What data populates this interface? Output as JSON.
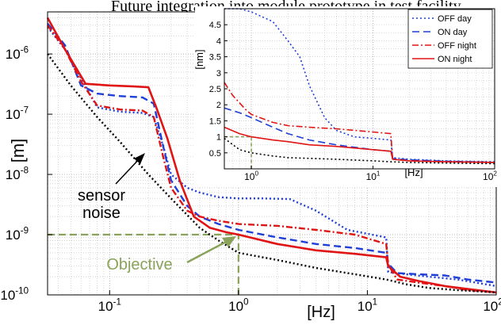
{
  "header": {
    "caption": "Future integration into module prototype in test facility."
  },
  "chart_data": [
    {
      "type": "line",
      "scale": {
        "x": "log",
        "y": "log"
      },
      "xlabel": "[Hz]",
      "ylabel": "[m]",
      "xlim": [
        0.033,
        100
      ],
      "ylim": [
        1e-10,
        5e-06
      ],
      "x_ticks": [
        0.1,
        1,
        10,
        100
      ],
      "x_tick_labels": [
        "10^-1",
        "10^0",
        "10^1",
        "10^2"
      ],
      "y_ticks": [
        1e-10,
        1e-09,
        1e-08,
        1e-07,
        1e-06
      ],
      "y_tick_labels": [
        "10^-10",
        "10^-9",
        "10^-8",
        "10^-7",
        "10^-6"
      ],
      "grid": true,
      "series": [
        {
          "name": "OFF day",
          "color": "#1f3fd6",
          "dash": "2,3",
          "x": [
            0.033,
            0.045,
            0.06,
            0.08,
            0.12,
            0.18,
            0.22,
            0.26,
            0.3,
            0.4,
            0.5,
            0.7,
            1.0,
            1.5,
            2.5,
            4,
            7,
            14,
            14.5,
            20,
            30,
            50,
            100
          ],
          "y": [
            2.8e-06,
            1.2e-06,
            4e-07,
            1.3e-07,
            1.1e-07,
            1.05e-07,
            9e-08,
            3e-08,
            1e-08,
            6e-09,
            5e-09,
            4.2e-09,
            4e-09,
            4e-09,
            3.9e-09,
            2.5e-09,
            1.2e-09,
            9e-10,
            2.4e-10,
            2.2e-10,
            2e-10,
            1.8e-10,
            1.4e-10
          ]
        },
        {
          "name": "ON  day",
          "color": "#1f3fd6",
          "dash": "9,5",
          "x": [
            0.033,
            0.045,
            0.06,
            0.08,
            0.12,
            0.18,
            0.22,
            0.26,
            0.3,
            0.4,
            0.5,
            0.7,
            1.0,
            2,
            4,
            8,
            14,
            14.5,
            17,
            25,
            40,
            60,
            100
          ],
          "y": [
            3.2e-06,
            1.4e-06,
            3e-07,
            2.2e-07,
            2e-07,
            1.9e-07,
            1.5e-07,
            3e-08,
            8e-09,
            3e-09,
            2e-09,
            1.5e-09,
            1.2e-09,
            9e-10,
            7e-10,
            6e-10,
            5e-10,
            3.3e-10,
            2.3e-10,
            2.2e-10,
            2.1e-10,
            1.8e-10,
            1.6e-10
          ]
        },
        {
          "name": "OFF night",
          "color": "#e01414",
          "dash": "8,3,2,3",
          "x": [
            0.033,
            0.045,
            0.06,
            0.08,
            0.12,
            0.18,
            0.22,
            0.26,
            0.3,
            0.4,
            0.5,
            0.7,
            1.0,
            2,
            4,
            8,
            14,
            14.5,
            17,
            25,
            40,
            60,
            100
          ],
          "y": [
            3e-06,
            1.2e-06,
            3.5e-07,
            1.4e-07,
            1.2e-07,
            1.15e-07,
            9e-08,
            2e-08,
            6e-09,
            2.5e-09,
            2e-09,
            1.7e-09,
            1.5e-09,
            1.4e-09,
            1.2e-09,
            1e-09,
            7e-10,
            3.2e-10,
            1.8e-10,
            1.6e-10,
            1.4e-10,
            1.2e-10,
            1.1e-10
          ]
        },
        {
          "name": "ON  night",
          "color": "#e01414",
          "dash": "",
          "x": [
            0.033,
            0.045,
            0.065,
            0.1,
            0.15,
            0.2,
            0.23,
            0.28,
            0.35,
            0.45,
            0.6,
            0.8,
            1.0,
            2,
            4,
            8,
            14,
            14.5,
            18,
            25,
            40,
            60,
            100
          ],
          "y": [
            4e-06,
            1.2e-06,
            3.2e-07,
            3e-07,
            2.9e-07,
            2.8e-07,
            1.3e-07,
            4e-08,
            8e-09,
            2e-09,
            1.3e-09,
            1.1e-09,
            1e-09,
            7e-10,
            5.5e-10,
            4.8e-10,
            4.2e-10,
            3e-10,
            2e-10,
            1.7e-10,
            1.4e-10,
            1.25e-10,
            1.1e-10
          ]
        },
        {
          "name": "sensor noise",
          "color": "#000000",
          "dash": "2,3",
          "x": [
            0.033,
            0.05,
            0.08,
            0.12,
            0.2,
            0.3,
            0.5,
            0.7,
            1.0,
            2,
            4,
            8,
            14,
            20,
            30,
            50,
            100
          ],
          "y": [
            1e-06,
            3e-07,
            9e-08,
            3.5e-08,
            1e-08,
            4e-09,
            1.3e-09,
            8e-10,
            5e-10,
            3.8e-10,
            2.8e-10,
            2.2e-10,
            1.8e-10,
            1.5e-10,
            1.3e-10,
            1.2e-10,
            1.1e-10
          ]
        }
      ],
      "objective": {
        "label": "Objective",
        "x": 1.0,
        "y": 1e-09,
        "color": "#8aa35a"
      },
      "annotations": {
        "sensor_noise_label": [
          "sensor",
          "noise"
        ]
      }
    },
    {
      "type": "line",
      "scale": {
        "x": "log",
        "y": "linear"
      },
      "xlabel": "[Hz]",
      "ylabel": "[nm]",
      "xlim": [
        0.6,
        100
      ],
      "ylim": [
        0,
        5
      ],
      "x_ticks": [
        1,
        10,
        100
      ],
      "x_tick_labels": [
        "10^0",
        "10^1",
        "10^2"
      ],
      "y_ticks": [
        0.5,
        1,
        1.5,
        2,
        2.5,
        3,
        3.5,
        4,
        4.5
      ],
      "y_tick_labels": [
        "0.5",
        "1",
        "1.5",
        "2",
        "2.5",
        "3",
        "3.5",
        "4",
        "4.5"
      ],
      "grid": true,
      "legend": {
        "position": "top-right",
        "entries": [
          "OFF day",
          "ON  day",
          "OFF night",
          "ON  night"
        ]
      },
      "series": [
        {
          "name": "OFF day",
          "color": "#1f3fd6",
          "dash": "2,3",
          "x": [
            0.6,
            0.8,
            1.0,
            1.5,
            2,
            2.5,
            3,
            4,
            5,
            7,
            10,
            14,
            14.5,
            20,
            40,
            100
          ],
          "y": [
            5,
            5,
            4.9,
            4.6,
            4.0,
            3.5,
            2.6,
            1.6,
            1.2,
            1.0,
            0.95,
            0.9,
            0.35,
            0.3,
            0.25,
            0.22
          ]
        },
        {
          "name": "ON  day",
          "color": "#1f3fd6",
          "dash": "9,5",
          "x": [
            0.6,
            0.8,
            1.0,
            1.5,
            2,
            3,
            5,
            10,
            14,
            14.5,
            20,
            40,
            100
          ],
          "y": [
            1.9,
            1.75,
            1.6,
            1.3,
            1.1,
            0.9,
            0.75,
            0.6,
            0.55,
            0.32,
            0.28,
            0.24,
            0.2
          ]
        },
        {
          "name": "OFF night",
          "color": "#e01414",
          "dash": "8,3,2,3",
          "x": [
            0.6,
            0.7,
            0.9,
            1.0,
            1.5,
            2,
            3,
            5,
            10,
            14,
            14.5,
            20,
            40,
            100
          ],
          "y": [
            2.7,
            2.3,
            1.85,
            1.7,
            1.45,
            1.35,
            1.3,
            1.25,
            1.15,
            1.1,
            0.3,
            0.25,
            0.22,
            0.2
          ]
        },
        {
          "name": "ON  night",
          "color": "#e01414",
          "dash": "",
          "x": [
            0.6,
            0.8,
            1.0,
            1.5,
            2,
            3,
            5,
            10,
            14,
            14.5,
            20,
            40,
            100
          ],
          "y": [
            1.3,
            1.1,
            1.0,
            0.9,
            0.85,
            0.75,
            0.7,
            0.6,
            0.55,
            0.3,
            0.25,
            0.22,
            0.2
          ]
        },
        {
          "name": "sensor noise",
          "color": "#000000",
          "dash": "2,3",
          "x": [
            0.6,
            0.8,
            1.0,
            1.5,
            2,
            5,
            10,
            14,
            20,
            40,
            100
          ],
          "y": [
            0.95,
            0.6,
            0.5,
            0.4,
            0.35,
            0.3,
            0.25,
            0.22,
            0.2,
            0.18,
            0.16
          ]
        }
      ],
      "objective": {
        "x": 1.0,
        "y": 1.0,
        "color": "#8aa35a"
      }
    }
  ]
}
